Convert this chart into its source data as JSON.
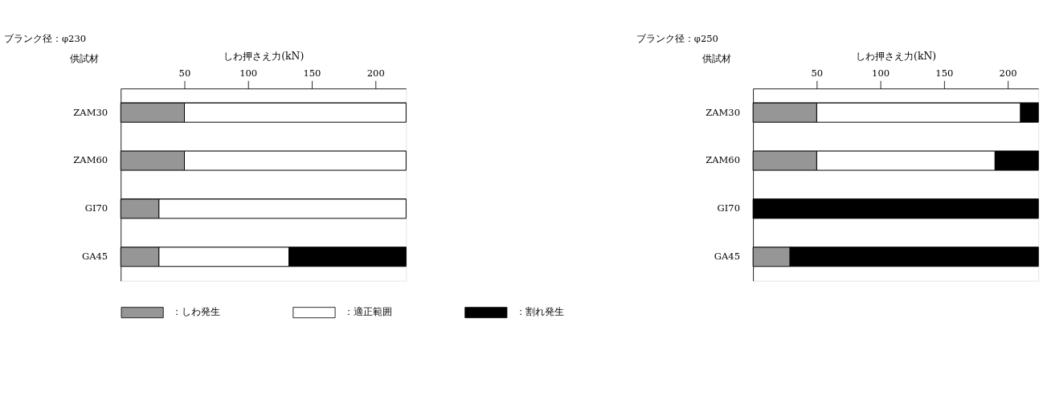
{
  "chart_data": [
    {
      "type": "bar",
      "orientation": "horizontal",
      "stacked": true,
      "title": "ブランク径：φ230",
      "xlabel": "しわ押さえ力(kN)",
      "ylabel": "供試材",
      "categories": [
        "ZAM30",
        "ZAM60",
        "GI70",
        "GA45"
      ],
      "xlim": [
        0,
        224
      ],
      "xticks": [
        50,
        100,
        150,
        200
      ],
      "grid": "y",
      "legend": "bottom",
      "series": [
        {
          "name": "：しわ発生",
          "color": "#969696",
          "values": [
            50,
            50,
            30,
            30
          ]
        },
        {
          "name": "：適正範囲",
          "color": "#ffffff",
          "values": [
            174,
            174,
            194,
            102
          ]
        },
        {
          "name": "：割れ発生",
          "color": "#000000",
          "values": [
            null,
            null,
            null,
            92
          ]
        }
      ]
    },
    {
      "type": "bar",
      "orientation": "horizontal",
      "stacked": true,
      "title": "ブランク径：φ250",
      "xlabel": "しわ押さえ力(kN)",
      "ylabel": "供試材",
      "categories": [
        "ZAM30",
        "ZAM60",
        "GI70",
        "GA45"
      ],
      "xlim": [
        0,
        224
      ],
      "xticks": [
        50,
        100,
        150,
        200
      ],
      "grid": "y",
      "series": [
        {
          "color": "#969696",
          "values": [
            50,
            50,
            null,
            29
          ]
        },
        {
          "color": "#ffffff",
          "values": [
            160,
            140,
            null,
            null
          ]
        },
        {
          "color": "#000000",
          "values": [
            14,
            34,
            224,
            195
          ]
        }
      ]
    }
  ]
}
